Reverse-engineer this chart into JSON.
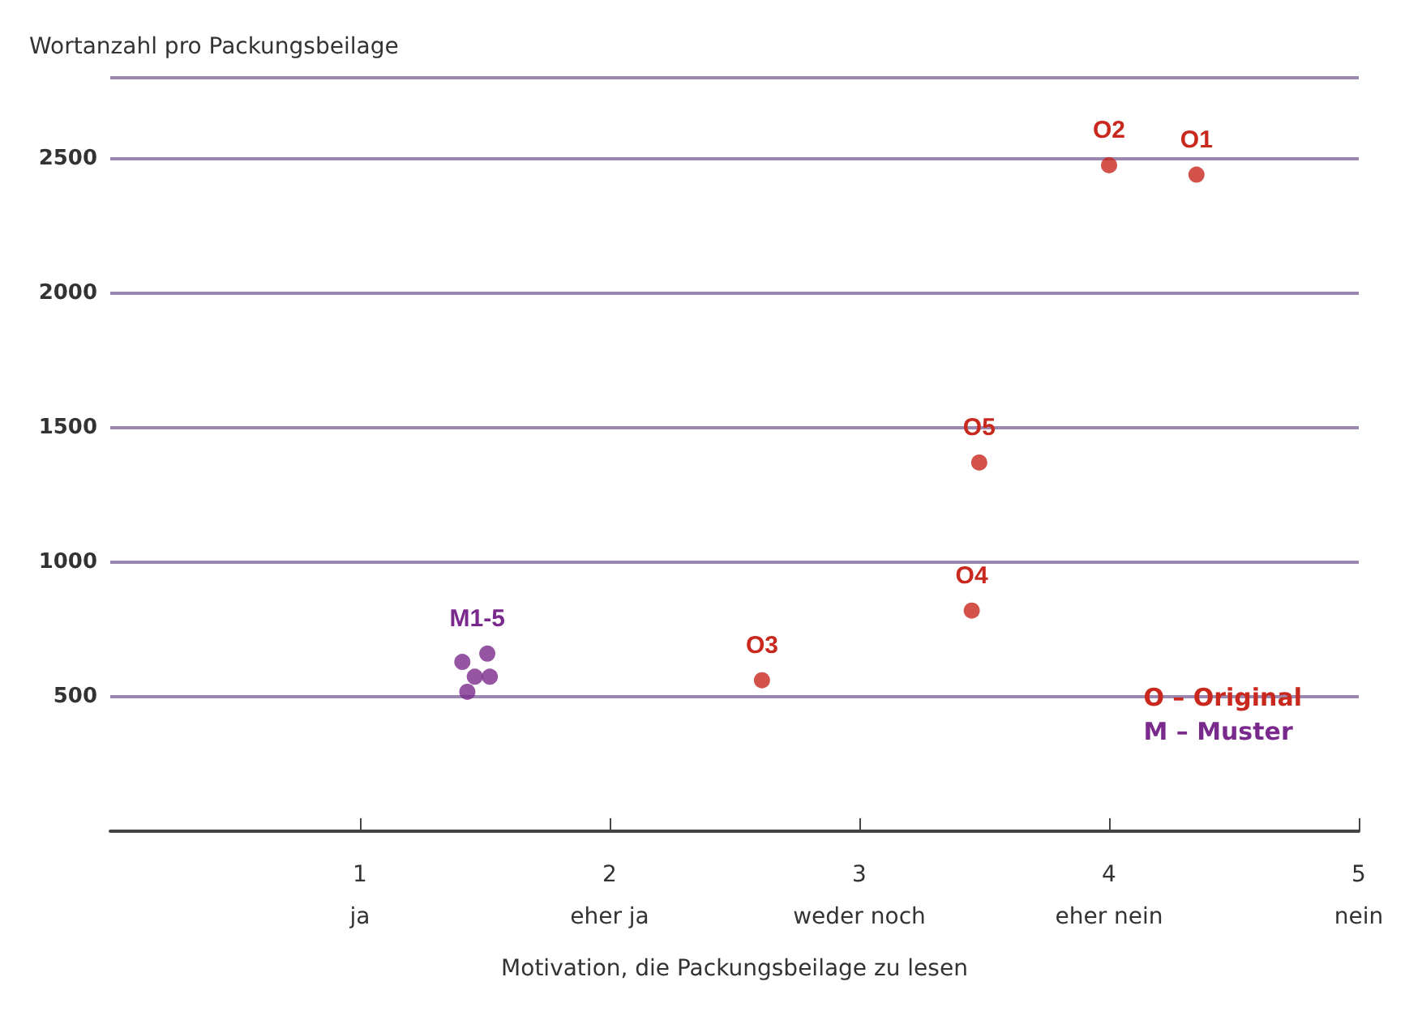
{
  "chart_data": {
    "type": "scatter",
    "ylabel": "Wortanzahl pro Packungsbeilage",
    "xlabel": "Motivation, die Packungsbeilage zu lesen",
    "series": [
      {
        "name": "O – Original",
        "color": "#c8281e",
        "x": [
          4.35,
          4.0,
          2.61,
          3.45,
          3.48
        ],
        "values": [
          2440,
          2475,
          561,
          820,
          1370
        ]
      },
      {
        "name": "M – Muster",
        "color": "#7a2a8c",
        "x": [
          1.41,
          1.51,
          1.46,
          1.52,
          1.43
        ],
        "values": [
          629,
          660,
          574,
          574,
          518
        ]
      }
    ],
    "xlim": [
      0,
      5
    ],
    "xticks": [
      {
        "value": 1,
        "label": "1\nja"
      },
      {
        "value": 2,
        "label": "2\neher ja"
      },
      {
        "value": 3,
        "label": "3\nweder noch"
      },
      {
        "value": 4,
        "label": "4\neher nein"
      },
      {
        "value": 5,
        "label": "5\nnein"
      }
    ],
    "ylim": [
      0,
      2800
    ],
    "yticks": [
      500,
      1000,
      1500,
      2000,
      2500
    ],
    "grid": "y",
    "legend": "right",
    "marker": "circle",
    "annotations": [
      {
        "text": "O1",
        "x": 4.35,
        "y": 2440
      },
      {
        "text": "O2",
        "x": 4.0,
        "y": 2475
      },
      {
        "text": "O3",
        "x": 2.61,
        "y": 561
      },
      {
        "text": "O4",
        "x": 3.45,
        "y": 820
      },
      {
        "text": "O5",
        "x": 3.48,
        "y": 1370
      },
      {
        "text": "M1-5",
        "x": 1.47,
        "y": 660
      }
    ]
  }
}
